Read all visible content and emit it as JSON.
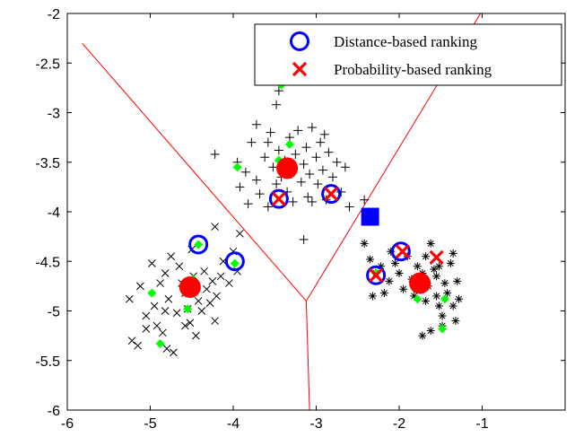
{
  "chart_data": {
    "type": "scatter",
    "xlim": [
      -6,
      0
    ],
    "ylim": [
      -6,
      -2
    ],
    "xticks": [
      -6,
      -5,
      -4,
      -3,
      -2,
      -1
    ],
    "yticks": [
      -2,
      -2.5,
      -3,
      -3.5,
      -4,
      -4.5,
      -5,
      -5.5,
      -6
    ],
    "x_tick_labels": [
      "-6",
      "-5",
      "-4",
      "-3",
      "-2",
      "-1"
    ],
    "y_tick_labels": [
      "-2",
      "-2.5",
      "-3",
      "-3.5",
      "-4",
      "-4.5",
      "-5",
      "-5.5",
      "-6"
    ],
    "grid": false,
    "legend": {
      "position": "top-right",
      "entries": [
        {
          "label": "Distance-based ranking",
          "marker": "circle-open",
          "color": "#0000ff"
        },
        {
          "label": "Probability-based ranking",
          "marker": "x",
          "color": "#ff0000"
        }
      ]
    },
    "boundaries": {
      "color": "#ff0000",
      "lines": [
        [
          [
            -5.82,
            -2.3
          ],
          [
            -3.12,
            -4.9
          ]
        ],
        [
          [
            -1.02,
            -2.0
          ],
          [
            -3.12,
            -4.9
          ]
        ],
        [
          [
            -3.12,
            -4.9
          ],
          [
            -3.08,
            -6.0
          ]
        ]
      ]
    },
    "series": [
      {
        "marker": "x",
        "color": "#000000",
        "points": [
          [
            -5.25,
            -4.88
          ],
          [
            -5.22,
            -5.3
          ],
          [
            -5.15,
            -5.35
          ],
          [
            -5.12,
            -4.75
          ],
          [
            -5.05,
            -5.05
          ],
          [
            -4.98,
            -4.52
          ],
          [
            -4.95,
            -4.95
          ],
          [
            -4.92,
            -5.15
          ],
          [
            -4.88,
            -4.72
          ],
          [
            -4.85,
            -5.22
          ],
          [
            -4.82,
            -4.62
          ],
          [
            -4.8,
            -5.38
          ],
          [
            -4.78,
            -4.88
          ],
          [
            -4.75,
            -4.45
          ],
          [
            -4.72,
            -5.42
          ],
          [
            -4.68,
            -5.02
          ],
          [
            -4.65,
            -4.55
          ],
          [
            -4.62,
            -4.72
          ],
          [
            -4.58,
            -4.82
          ],
          [
            -4.55,
            -4.98
          ],
          [
            -4.52,
            -5.12
          ],
          [
            -4.5,
            -4.38
          ],
          [
            -4.48,
            -4.65
          ],
          [
            -4.45,
            -5.25
          ],
          [
            -4.42,
            -4.9
          ],
          [
            -4.38,
            -5.0
          ],
          [
            -4.35,
            -4.6
          ],
          [
            -4.32,
            -4.78
          ],
          [
            -4.28,
            -4.92
          ],
          [
            -4.25,
            -4.7
          ],
          [
            -4.22,
            -5.1
          ],
          [
            -4.2,
            -4.85
          ],
          [
            -4.15,
            -4.65
          ],
          [
            -4.12,
            -4.5
          ],
          [
            -4.05,
            -4.72
          ],
          [
            -4.0,
            -4.4
          ],
          [
            -3.95,
            -4.6
          ],
          [
            -4.22,
            -4.15
          ],
          [
            -3.92,
            -4.22
          ],
          [
            -4.58,
            -5.15
          ],
          [
            -5.05,
            -5.18
          ],
          [
            -4.82,
            -5.0
          ]
        ]
      },
      {
        "marker": "plus",
        "color": "#000000",
        "points": [
          [
            -3.45,
            -2.78
          ],
          [
            -3.48,
            -2.92
          ],
          [
            -3.95,
            -3.5
          ],
          [
            -3.92,
            -3.75
          ],
          [
            -3.85,
            -3.6
          ],
          [
            -3.82,
            -3.92
          ],
          [
            -3.78,
            -3.3
          ],
          [
            -3.72,
            -3.68
          ],
          [
            -3.68,
            -3.82
          ],
          [
            -3.62,
            -3.45
          ],
          [
            -3.58,
            -3.95
          ],
          [
            -3.55,
            -3.2
          ],
          [
            -3.52,
            -3.55
          ],
          [
            -3.48,
            -3.72
          ],
          [
            -3.45,
            -3.38
          ],
          [
            -3.42,
            -3.65
          ],
          [
            -3.38,
            -3.48
          ],
          [
            -3.35,
            -3.8
          ],
          [
            -3.32,
            -3.25
          ],
          [
            -3.3,
            -3.62
          ],
          [
            -3.28,
            -3.9
          ],
          [
            -3.25,
            -3.42
          ],
          [
            -3.22,
            -3.18
          ],
          [
            -3.18,
            -3.7
          ],
          [
            -3.15,
            -3.52
          ],
          [
            -3.12,
            -3.35
          ],
          [
            -3.1,
            -3.85
          ],
          [
            -3.08,
            -3.62
          ],
          [
            -3.05,
            -3.15
          ],
          [
            -3.0,
            -3.45
          ],
          [
            -2.98,
            -3.72
          ],
          [
            -2.95,
            -3.3
          ],
          [
            -2.92,
            -3.58
          ],
          [
            -2.88,
            -3.88
          ],
          [
            -2.85,
            -3.4
          ],
          [
            -2.8,
            -3.65
          ],
          [
            -2.75,
            -3.5
          ],
          [
            -2.7,
            -3.8
          ],
          [
            -2.65,
            -3.55
          ],
          [
            -2.6,
            -3.95
          ],
          [
            -2.42,
            -3.88
          ],
          [
            -3.15,
            -4.28
          ],
          [
            -4.22,
            -3.42
          ],
          [
            -3.58,
            -3.3
          ],
          [
            -3.72,
            -3.12
          ],
          [
            -3.05,
            -3.9
          ],
          [
            -2.9,
            -3.22
          ]
        ]
      },
      {
        "marker": "star",
        "color": "#000000",
        "points": [
          [
            -2.42,
            -4.32
          ],
          [
            -2.35,
            -4.48
          ],
          [
            -2.28,
            -4.62
          ],
          [
            -2.22,
            -4.55
          ],
          [
            -2.18,
            -4.82
          ],
          [
            -2.12,
            -4.7
          ],
          [
            -2.05,
            -4.52
          ],
          [
            -2.0,
            -4.62
          ],
          [
            -1.95,
            -4.78
          ],
          [
            -1.9,
            -4.45
          ],
          [
            -1.85,
            -4.68
          ],
          [
            -1.82,
            -4.85
          ],
          [
            -1.78,
            -4.55
          ],
          [
            -1.72,
            -4.62
          ],
          [
            -1.68,
            -4.9
          ],
          [
            -1.65,
            -4.75
          ],
          [
            -1.62,
            -4.32
          ],
          [
            -1.58,
            -4.58
          ],
          [
            -1.55,
            -4.85
          ],
          [
            -1.52,
            -4.95
          ],
          [
            -1.48,
            -5.05
          ],
          [
            -1.45,
            -4.72
          ],
          [
            -1.42,
            -4.82
          ],
          [
            -1.38,
            -4.52
          ],
          [
            -1.35,
            -4.95
          ],
          [
            -1.32,
            -5.1
          ],
          [
            -1.3,
            -4.7
          ],
          [
            -1.28,
            -4.88
          ],
          [
            -1.62,
            -5.2
          ],
          [
            -1.48,
            -5.15
          ],
          [
            -1.72,
            -5.25
          ],
          [
            -1.55,
            -4.65
          ],
          [
            -1.68,
            -4.45
          ],
          [
            -2.32,
            -4.85
          ],
          [
            -2.1,
            -4.4
          ],
          [
            -1.52,
            -4.55
          ],
          [
            -1.35,
            -4.42
          ]
        ]
      },
      {
        "marker": "diamond",
        "color": "#00ff00",
        "points": [
          [
            -4.98,
            -4.82
          ],
          [
            -4.88,
            -5.33
          ],
          [
            -4.55,
            -4.98
          ],
          [
            -4.42,
            -4.33
          ],
          [
            -3.98,
            -4.52
          ],
          [
            -4.48,
            -4.68
          ],
          [
            -3.45,
            -3.48
          ],
          [
            -3.42,
            -2.72
          ],
          [
            -3.32,
            -3.32
          ],
          [
            -3.95,
            -3.55
          ],
          [
            -2.28,
            -4.62
          ],
          [
            -1.78,
            -4.88
          ],
          [
            -1.48,
            -5.18
          ],
          [
            -1.45,
            -4.88
          ]
        ]
      },
      {
        "marker": "big-dot",
        "color": "#ff0000",
        "points": [
          [
            -4.52,
            -4.76
          ],
          [
            -3.35,
            -3.56
          ],
          [
            -1.75,
            -4.72
          ]
        ]
      },
      {
        "marker": "square",
        "color": "#0000ff",
        "points": [
          [
            -2.35,
            -4.05
          ]
        ]
      },
      {
        "name": "Distance-based ranking",
        "marker": "circle-open",
        "color": "#0000ff",
        "points": [
          [
            -4.42,
            -4.33
          ],
          [
            -3.98,
            -4.5
          ],
          [
            -3.45,
            -3.87
          ],
          [
            -2.82,
            -3.82
          ],
          [
            -2.28,
            -4.64
          ],
          [
            -1.98,
            -4.4
          ]
        ]
      },
      {
        "name": "Probability-based ranking",
        "marker": "x",
        "color": "#ff0000",
        "points": [
          [
            -3.45,
            -3.87
          ],
          [
            -2.82,
            -3.82
          ],
          [
            -2.28,
            -4.64
          ],
          [
            -1.96,
            -4.4
          ],
          [
            -1.55,
            -4.46
          ]
        ]
      }
    ]
  }
}
